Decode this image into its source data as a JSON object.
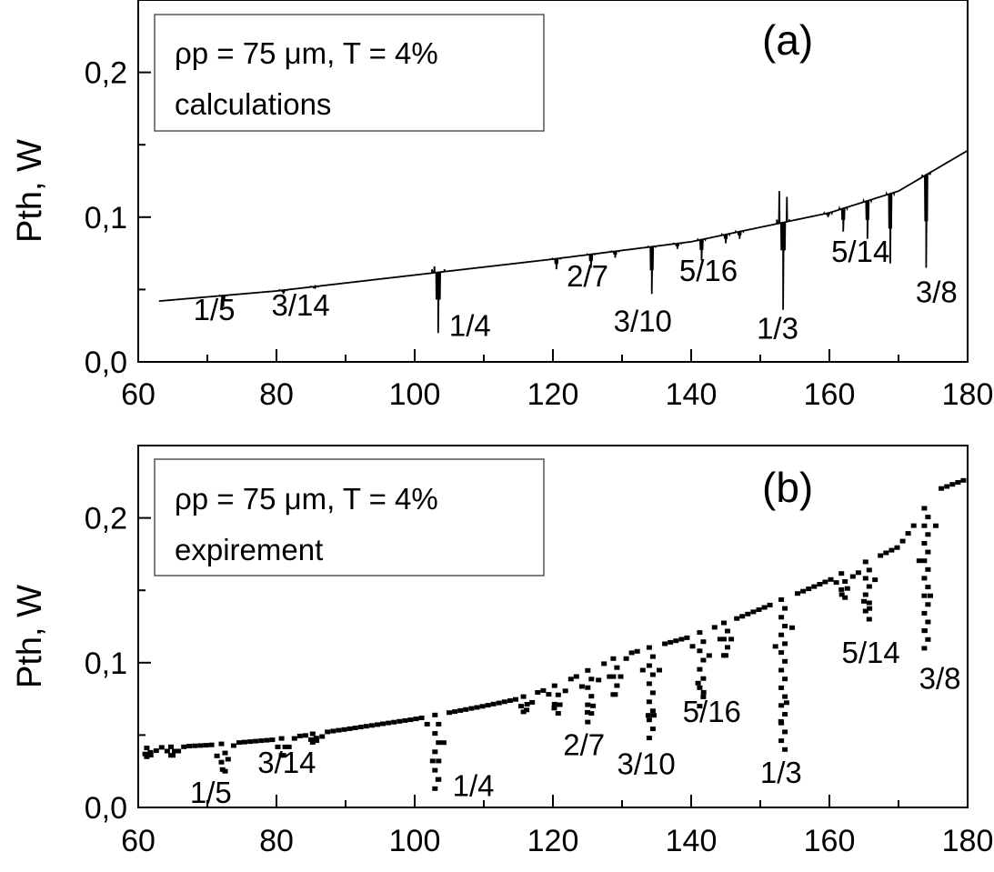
{
  "chart_data": [
    {
      "type": "line",
      "panel_label": "(a)",
      "legend": {
        "line1": "ρp = 75 μm,  T = 4%",
        "line2": "calculations",
        "placement": "top-left"
      },
      "ylabel": "Pth, W",
      "xlabel": "",
      "xlim": [
        60,
        180
      ],
      "ylim": [
        0,
        0.25
      ],
      "x_ticks": [
        "60",
        "80",
        "100",
        "120",
        "140",
        "160",
        "180"
      ],
      "y_ticks": [
        "0,0",
        "0,1",
        "0,2"
      ],
      "grid": false,
      "baseline": {
        "x": [
          63,
          80,
          100,
          120,
          140,
          160,
          170,
          180
        ],
        "y": [
          0.042,
          0.049,
          0.06,
          0.071,
          0.083,
          0.103,
          0.118,
          0.146
        ]
      },
      "dips": [
        {
          "x": 72.3,
          "y": 0.038
        },
        {
          "x": 81,
          "y": 0.047
        },
        {
          "x": 85.5,
          "y": 0.051
        },
        {
          "x": 103.4,
          "y": 0.02,
          "up": 0.066
        },
        {
          "x": 120.5,
          "y": 0.064
        },
        {
          "x": 125.5,
          "y": 0.065
        },
        {
          "x": 129,
          "y": 0.072
        },
        {
          "x": 134.3,
          "y": 0.047
        },
        {
          "x": 138,
          "y": 0.078
        },
        {
          "x": 141.5,
          "y": 0.07
        },
        {
          "x": 145,
          "y": 0.082
        },
        {
          "x": 147,
          "y": 0.085
        },
        {
          "x": 153.3,
          "y": 0.036,
          "up": 0.118
        },
        {
          "x": 159.8,
          "y": 0.1
        },
        {
          "x": 162,
          "y": 0.09
        },
        {
          "x": 165.5,
          "y": 0.085
        },
        {
          "x": 168.8,
          "y": 0.068
        },
        {
          "x": 174,
          "y": 0.065
        }
      ],
      "annotations": [
        {
          "text": "1/5",
          "x": 71,
          "y": 0.029
        },
        {
          "text": "3/14",
          "x": 83.5,
          "y": 0.032
        },
        {
          "text": "1/4",
          "x": 108,
          "y": 0.018
        },
        {
          "text": "2/7",
          "x": 125,
          "y": 0.052
        },
        {
          "text": "3/10",
          "x": 133,
          "y": 0.021
        },
        {
          "text": "5/16",
          "x": 142.5,
          "y": 0.056
        },
        {
          "text": "1/3",
          "x": 152.5,
          "y": 0.016
        },
        {
          "text": "5/14",
          "x": 164.5,
          "y": 0.069
        },
        {
          "text": "3/8",
          "x": 175.5,
          "y": 0.041
        }
      ]
    },
    {
      "type": "scatter",
      "panel_label": "(b)",
      "legend": {
        "line1": "ρp = 75 μm,  T = 4%",
        "line2": "expirement",
        "placement": "top-left"
      },
      "ylabel": "Pth, W",
      "xlabel": "",
      "xlim": [
        60,
        180
      ],
      "ylim": [
        0,
        0.25
      ],
      "x_ticks": [
        "60",
        "80",
        "100",
        "120",
        "140",
        "160",
        "180"
      ],
      "y_ticks": [
        "0,0",
        "0,1",
        "0,2"
      ],
      "grid": false,
      "baseline": {
        "x": [
          61,
          70,
          80,
          90,
          100,
          110,
          115,
          120,
          130,
          140,
          150,
          160,
          170,
          176,
          180
        ],
        "y": [
          0.041,
          0.043,
          0.047,
          0.054,
          0.061,
          0.07,
          0.075,
          0.083,
          0.105,
          0.118,
          0.137,
          0.157,
          0.18,
          0.22,
          0.227
        ]
      },
      "dips": [
        {
          "x": 61.5,
          "y": 0.035
        },
        {
          "x": 65,
          "y": 0.036
        },
        {
          "x": 72.3,
          "y": 0.025
        },
        {
          "x": 81,
          "y": 0.036
        },
        {
          "x": 85.5,
          "y": 0.045
        },
        {
          "x": 103.2,
          "y": 0.013
        },
        {
          "x": 116,
          "y": 0.066
        },
        {
          "x": 120.5,
          "y": 0.065
        },
        {
          "x": 125.3,
          "y": 0.059
        },
        {
          "x": 129,
          "y": 0.078
        },
        {
          "x": 134.2,
          "y": 0.048
        },
        {
          "x": 141.5,
          "y": 0.07
        },
        {
          "x": 145,
          "y": 0.105
        },
        {
          "x": 153.3,
          "y": 0.04
        },
        {
          "x": 162,
          "y": 0.145
        },
        {
          "x": 165.5,
          "y": 0.13
        },
        {
          "x": 174,
          "y": 0.11
        }
      ],
      "annotations": [
        {
          "text": "1/5",
          "x": 70.5,
          "y": 0.003
        },
        {
          "text": "3/14",
          "x": 81.5,
          "y": 0.024
        },
        {
          "text": "1/4",
          "x": 108.5,
          "y": 0.008
        },
        {
          "text": "2/7",
          "x": 124.5,
          "y": 0.036
        },
        {
          "text": "3/10",
          "x": 133.5,
          "y": 0.023
        },
        {
          "text": "5/16",
          "x": 143,
          "y": 0.059
        },
        {
          "text": "1/3",
          "x": 153,
          "y": 0.017
        },
        {
          "text": "5/14",
          "x": 166,
          "y": 0.1
        },
        {
          "text": "3/8",
          "x": 176,
          "y": 0.082
        }
      ]
    }
  ]
}
